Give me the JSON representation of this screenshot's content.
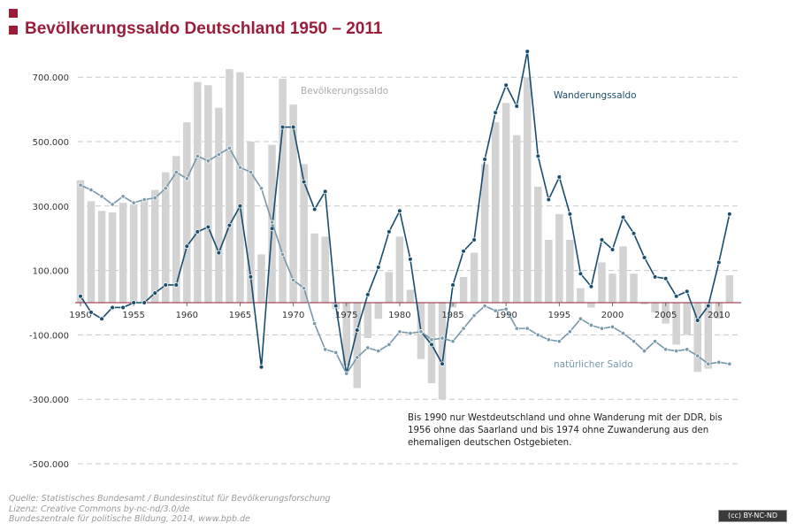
{
  "colors": {
    "accent": "#9b1d3a",
    "bars": "#d3d3d3",
    "migration": "#174d6e",
    "natural": "#7598ab",
    "grid": "#c8c8c8",
    "zero_line": "#9b1d3a"
  },
  "header": {
    "title": "Bevölkerungssaldo Deutschland 1950 – 2011"
  },
  "chart_data": {
    "type": "bar",
    "title": "Bevölkerungssaldo Deutschland 1950 – 2011",
    "xlabel": "",
    "ylabel": "",
    "ylim": [
      -500000,
      780000
    ],
    "y_ticks": [
      -500000,
      -300000,
      -100000,
      100000,
      300000,
      500000,
      700000
    ],
    "y_tick_labels": [
      "-500.000",
      "-300.000",
      "-100.000",
      "100.000",
      "300.000",
      "500.000",
      "700.000"
    ],
    "x_ticks": [
      1950,
      1955,
      1960,
      1965,
      1970,
      1975,
      1980,
      1985,
      1990,
      1995,
      2000,
      2005,
      2010
    ],
    "x_tick_labels": [
      "1950",
      "1955",
      "1960",
      "1965",
      "1970",
      "1975",
      "1980",
      "1985",
      "1990",
      "1995",
      "2000",
      "2005",
      "2010"
    ],
    "grid": true,
    "x": [
      1950,
      1951,
      1952,
      1953,
      1954,
      1955,
      1956,
      1957,
      1958,
      1959,
      1960,
      1961,
      1962,
      1963,
      1964,
      1965,
      1966,
      1967,
      1968,
      1969,
      1970,
      1971,
      1972,
      1973,
      1974,
      1975,
      1976,
      1977,
      1978,
      1979,
      1980,
      1981,
      1982,
      1983,
      1984,
      1985,
      1986,
      1987,
      1988,
      1989,
      1990,
      1991,
      1992,
      1993,
      1994,
      1995,
      1996,
      1997,
      1998,
      1999,
      2000,
      2001,
      2002,
      2003,
      2004,
      2005,
      2006,
      2007,
      2008,
      2009,
      2010,
      2011
    ],
    "series": [
      {
        "name": "Bevölkerungssaldo",
        "type": "bar",
        "values": [
          380000,
          315000,
          285000,
          280000,
          310000,
          305000,
          320000,
          350000,
          405000,
          455000,
          560000,
          685000,
          675000,
          605000,
          725000,
          715000,
          500000,
          150000,
          490000,
          695000,
          615000,
          430000,
          215000,
          205000,
          -20000,
          -195000,
          -265000,
          -110000,
          -50000,
          95000,
          205000,
          40000,
          -175000,
          -250000,
          -300000,
          -15000,
          80000,
          155000,
          430000,
          560000,
          620000,
          520000,
          700000,
          360000,
          195000,
          275000,
          195000,
          45000,
          -15000,
          125000,
          90000,
          175000,
          90000,
          -5000,
          -30000,
          -65000,
          -130000,
          -100000,
          -215000,
          -205000,
          -50000,
          85000
        ]
      },
      {
        "name": "Wanderungssaldo",
        "type": "line",
        "values": [
          20000,
          -30000,
          -50000,
          -15000,
          -15000,
          0,
          0,
          30000,
          55000,
          55000,
          175000,
          220000,
          235000,
          155000,
          240000,
          300000,
          80000,
          -200000,
          230000,
          545000,
          545000,
          375000,
          290000,
          345000,
          -10000,
          -220000,
          -85000,
          25000,
          110000,
          220000,
          285000,
          135000,
          -90000,
          -130000,
          -190000,
          55000,
          160000,
          195000,
          445000,
          590000,
          675000,
          610000,
          780000,
          455000,
          320000,
          390000,
          275000,
          90000,
          50000,
          195000,
          165000,
          265000,
          215000,
          140000,
          80000,
          75000,
          20000,
          35000,
          -55000,
          -10000,
          125000,
          275000
        ]
      },
      {
        "name": "natürlicher Saldo",
        "type": "line",
        "values": [
          365000,
          350000,
          330000,
          305000,
          330000,
          310000,
          320000,
          325000,
          355000,
          405000,
          385000,
          455000,
          440000,
          460000,
          480000,
          420000,
          405000,
          355000,
          250000,
          150000,
          70000,
          45000,
          -65000,
          -145000,
          -155000,
          -220000,
          -170000,
          -140000,
          -150000,
          -130000,
          -90000,
          -95000,
          -90000,
          -115000,
          -110000,
          -120000,
          -80000,
          -40000,
          -10000,
          -25000,
          -20000,
          -80000,
          -80000,
          -100000,
          -115000,
          -120000,
          -90000,
          -50000,
          -70000,
          -80000,
          -75000,
          -95000,
          -120000,
          -150000,
          -120000,
          -145000,
          -150000,
          -145000,
          -165000,
          -190000,
          -185000,
          -190000
        ]
      }
    ],
    "annotation": "Bis 1990 nur Westdeutschland und ohne Wanderung mit der DDR, bis 1956 ohne das Saarland und bis 1974 ohne Zuwanderung aus den ehemaligen deutschen Ostgebieten."
  },
  "note": {
    "text": "Bis 1990 nur Westdeutschland und ohne Wanderung mit der DDR, bis 1956 ohne das Saarland und bis 1974 ohne Zuwanderung aus den ehemaligen deutschen Ostgebieten."
  },
  "footer": {
    "source": "Quelle: Statistisches Bundesamt / Bundesinstitut für Bevölkerungsforschung",
    "license": "Lizenz: Creative Commons by-nc-nd/3.0/de",
    "publisher": "Bundeszentrale für politische Bildung, 2014, www.bpb.de",
    "cc_badge": "(cc) BY-NC-ND"
  }
}
